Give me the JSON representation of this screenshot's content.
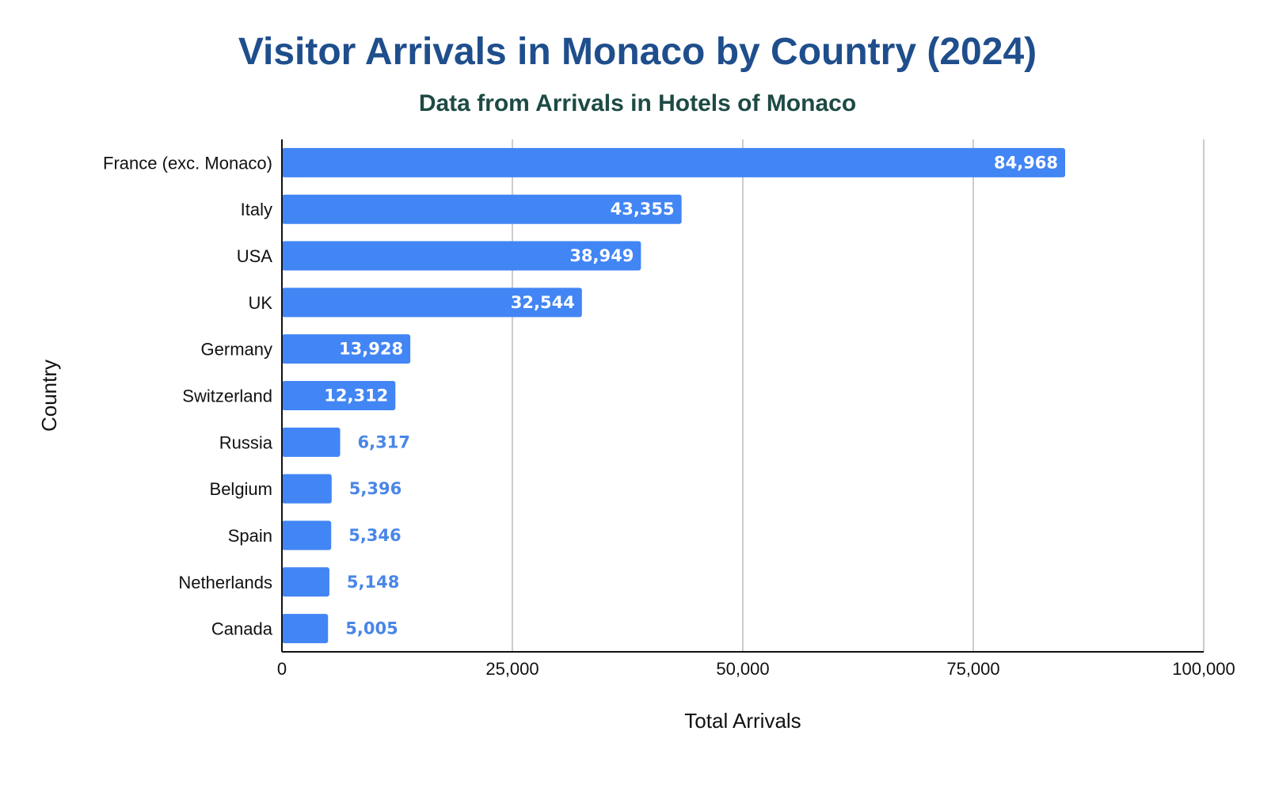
{
  "chart_data": {
    "type": "bar",
    "orientation": "horizontal",
    "title": "Visitor Arrivals in Monaco by Country (2024)",
    "subtitle": "Data from Arrivals in Hotels of Monaco",
    "xlabel": "Total Arrivals",
    "ylabel": "Country",
    "xlim": [
      0,
      100000
    ],
    "xticks": [
      0,
      25000,
      50000,
      75000,
      100000
    ],
    "xtick_labels": [
      "0",
      "25,000",
      "50,000",
      "75,000",
      "100,000"
    ],
    "categories": [
      "France (exc. Monaco)",
      "Italy",
      "USA",
      "UK",
      "Germany",
      "Switzerland",
      "Russia",
      "Belgium",
      "Spain",
      "Netherlands",
      "Canada"
    ],
    "values": [
      84968,
      43355,
      38949,
      32544,
      13928,
      12312,
      6317,
      5396,
      5346,
      5148,
      5005
    ],
    "value_labels": [
      "84,968",
      "43,355",
      "38,949",
      "32,544",
      "13,928",
      "12,312",
      "6,317",
      "5,396",
      "5,346",
      "5,148",
      "5,005"
    ],
    "grid": "vertical",
    "legend": "none",
    "bar_color": "#4285f4",
    "label_inside_color": "#ffffff",
    "label_outside_color": "#4a86e8"
  }
}
